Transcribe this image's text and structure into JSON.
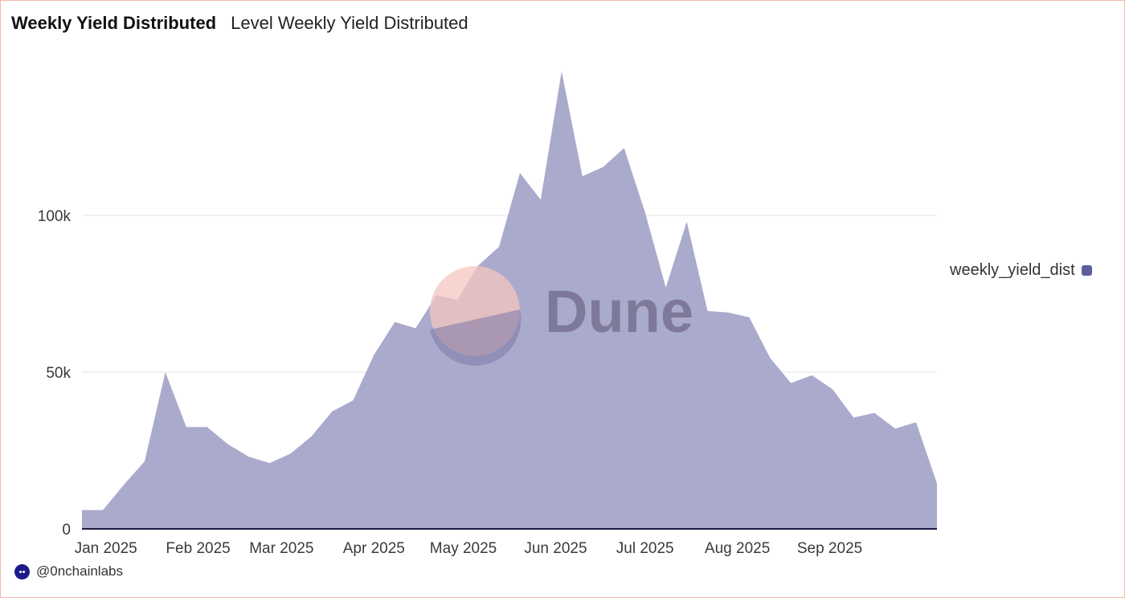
{
  "header": {
    "title": "Weekly Yield Distributed",
    "subtitle": "Level Weekly Yield Distributed"
  },
  "legend": {
    "label": "weekly_yield_dist",
    "color": "#5c5f9a"
  },
  "footer": {
    "handle": "@0nchainlabs"
  },
  "watermark": {
    "text": "Dune"
  },
  "colors": {
    "area_fill": "#aaaacd",
    "axis": "#1c1c4a",
    "grid": "#e6e6e6"
  },
  "chart_data": {
    "type": "area",
    "series": [
      {
        "name": "weekly_yield_dist",
        "points": [
          [
            "2024-12-24",
            6000
          ],
          [
            "2024-12-31",
            6000
          ],
          [
            "2025-01-07",
            14000
          ],
          [
            "2025-01-14",
            21500
          ],
          [
            "2025-01-21",
            50000
          ],
          [
            "2025-01-28",
            32500
          ],
          [
            "2025-02-04",
            32500
          ],
          [
            "2025-02-11",
            27000
          ],
          [
            "2025-02-18",
            23000
          ],
          [
            "2025-02-25",
            21000
          ],
          [
            "2025-03-04",
            24000
          ],
          [
            "2025-03-11",
            29500
          ],
          [
            "2025-03-18",
            37500
          ],
          [
            "2025-03-25",
            41000
          ],
          [
            "2025-04-01",
            55500
          ],
          [
            "2025-04-08",
            66000
          ],
          [
            "2025-04-15",
            64000
          ],
          [
            "2025-04-22",
            74500
          ],
          [
            "2025-04-29",
            73000
          ],
          [
            "2025-05-06",
            84000
          ],
          [
            "2025-05-13",
            90000
          ],
          [
            "2025-05-20",
            113500
          ],
          [
            "2025-05-27",
            105000
          ],
          [
            "2025-06-03",
            146000
          ],
          [
            "2025-06-10",
            112500
          ],
          [
            "2025-06-17",
            115500
          ],
          [
            "2025-06-24",
            121500
          ],
          [
            "2025-07-01",
            101000
          ],
          [
            "2025-07-08",
            77000
          ],
          [
            "2025-07-15",
            98000
          ],
          [
            "2025-07-22",
            69500
          ],
          [
            "2025-07-29",
            69000
          ],
          [
            "2025-08-05",
            67500
          ],
          [
            "2025-08-12",
            54500
          ],
          [
            "2025-08-19",
            46500
          ],
          [
            "2025-08-26",
            49000
          ],
          [
            "2025-09-02",
            44500
          ],
          [
            "2025-09-09",
            35500
          ],
          [
            "2025-09-16",
            37000
          ],
          [
            "2025-09-23",
            32000
          ],
          [
            "2025-09-30",
            34000
          ],
          [
            "2025-10-07",
            14500
          ]
        ]
      }
    ],
    "x_ticks": [
      "Jan 2025",
      "Feb 2025",
      "Mar 2025",
      "Apr 2025",
      "May 2025",
      "Jun 2025",
      "Jul 2025",
      "Aug 2025",
      "Sep 2025"
    ],
    "y_ticks": [
      {
        "value": 0,
        "label": "0"
      },
      {
        "value": 50000,
        "label": "50k"
      },
      {
        "value": 100000,
        "label": "100k"
      }
    ],
    "xlim": [
      "2024-12-24",
      "2025-10-07"
    ],
    "ylim": [
      0,
      150000
    ],
    "grid": true,
    "legend_position": "right"
  }
}
